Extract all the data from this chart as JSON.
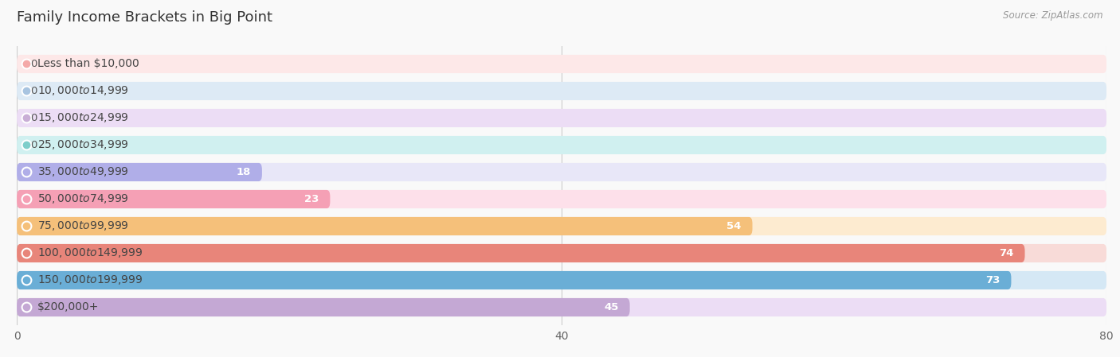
{
  "title": "Family Income Brackets in Big Point",
  "source": "Source: ZipAtlas.com",
  "categories": [
    "Less than $10,000",
    "$10,000 to $14,999",
    "$15,000 to $24,999",
    "$25,000 to $34,999",
    "$35,000 to $49,999",
    "$50,000 to $74,999",
    "$75,000 to $99,999",
    "$100,000 to $149,999",
    "$150,000 to $199,999",
    "$200,000+"
  ],
  "values": [
    0,
    0,
    0,
    0,
    18,
    23,
    54,
    74,
    73,
    45
  ],
  "bar_colors": [
    "#f4a9a8",
    "#a8c4e0",
    "#c9aed6",
    "#7ececa",
    "#b0aee8",
    "#f5a0b5",
    "#f5c07a",
    "#e8857a",
    "#6aaed6",
    "#c4a8d4"
  ],
  "bar_bg_colors": [
    "#fde8e8",
    "#ddeaf5",
    "#ecddf5",
    "#d0f0f0",
    "#e8e7f8",
    "#fde0ea",
    "#fdebd0",
    "#f8dbd8",
    "#d5e8f5",
    "#ecddf5"
  ],
  "xlim": [
    0,
    80
  ],
  "xticks": [
    0,
    40,
    80
  ],
  "value_label_color_inside": "#ffffff",
  "value_label_color_outside": "#555555",
  "title_fontsize": 13,
  "label_fontsize": 10,
  "value_fontsize": 9.5,
  "background_color": "#f9f9f9"
}
